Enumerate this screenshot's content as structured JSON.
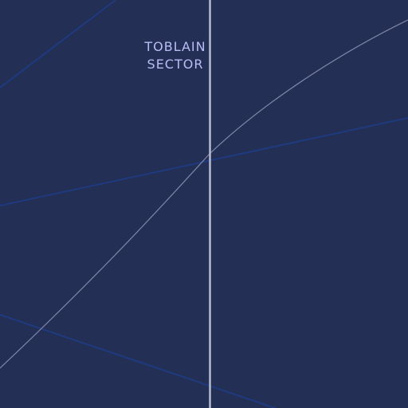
{
  "map": {
    "sector_label": {
      "line1": "TOBLAIN",
      "line2": "SECTOR"
    },
    "colors": {
      "background": "#232f55",
      "hyperlane": "#1f3a7e",
      "curve": "#7f86a6",
      "boundary": "#b7bccf",
      "label": "#b9bdf4"
    }
  }
}
